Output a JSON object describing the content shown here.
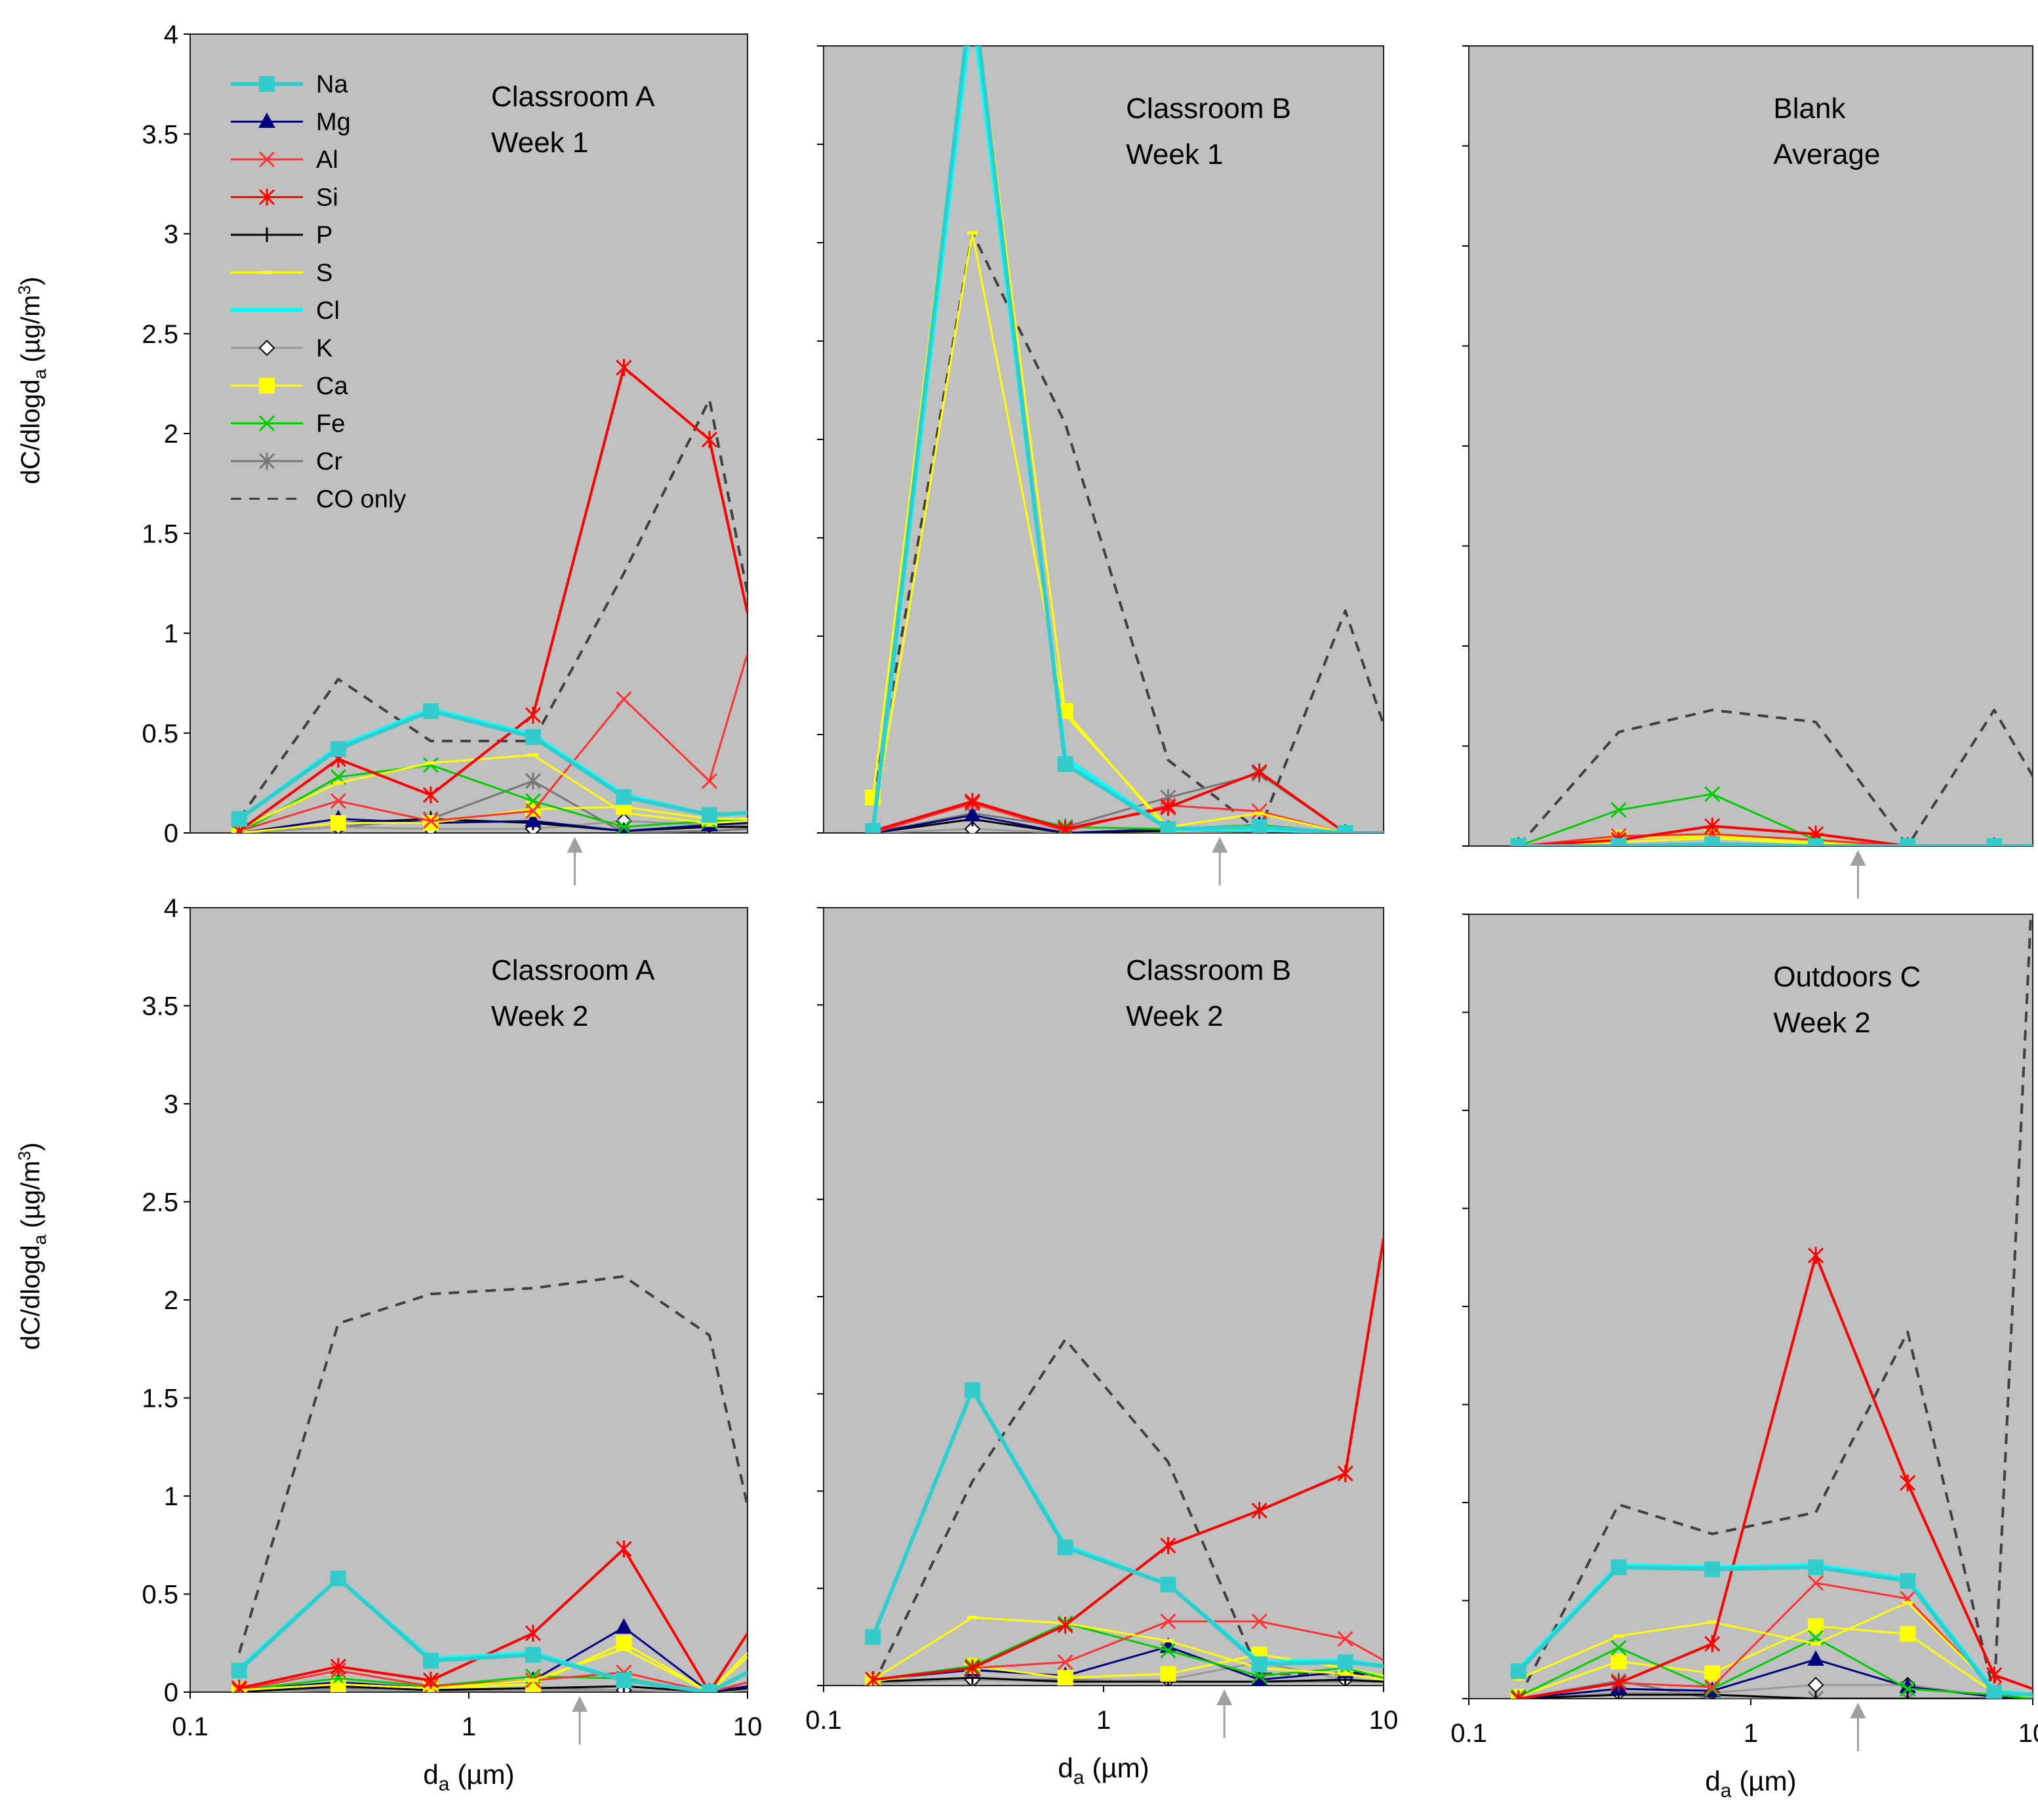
{
  "chart_data": {
    "type": "line",
    "ylabel": "dC/dlogd_a (µg/m³)",
    "ylabel_main": "dC/dlogd",
    "ylabel_sub": "a",
    "ylabel_unit": "(µg/m",
    "ylabel_sup": "3",
    "ylabel_close": ")",
    "xlabel_main": "d",
    "xlabel_sub": "a",
    "xlabel_unit": "(µm)",
    "x_scale": "log",
    "xlim": [
      0.1,
      10
    ],
    "ylim": [
      0,
      4
    ],
    "x_tick_labels": [
      "0.1",
      "1",
      "10"
    ],
    "y_tick_labels": [
      "0",
      "0.5",
      "1",
      "1.5",
      "2",
      "2.5",
      "3",
      "3.5",
      "4"
    ],
    "x": [
      0.15,
      0.34,
      0.73,
      1.7,
      3.6,
      7.3,
      10
    ],
    "legend_position": "top-left",
    "series_styles": [
      {
        "name": "Na",
        "color": "#33CCCC",
        "marker": "square"
      },
      {
        "name": "Mg",
        "color": "#00007F",
        "marker": "triangle"
      },
      {
        "name": "Al",
        "color": "#FF3333",
        "marker": "x"
      },
      {
        "name": "Si",
        "color": "#FF0000",
        "marker": "star"
      },
      {
        "name": "P",
        "color": "#000000",
        "marker": "plus"
      },
      {
        "name": "S",
        "color": "#FFFF00",
        "marker": "dash"
      },
      {
        "name": "Cl",
        "color": "#00FFFF",
        "marker": "none"
      },
      {
        "name": "K",
        "color": "#999999",
        "marker": "diamond"
      },
      {
        "name": "Ca",
        "color": "#FFFF00",
        "marker": "square"
      },
      {
        "name": "Fe",
        "color": "#00CC00",
        "marker": "x"
      },
      {
        "name": "Cr",
        "color": "#777777",
        "marker": "star"
      },
      {
        "name": "CO only",
        "color": "#444444",
        "marker": "none",
        "dashed": true
      }
    ],
    "panels": [
      {
        "title_line1": "Classroom A",
        "title_line2": "Week 1",
        "arrow_x": 2.4,
        "series": [
          {
            "name": "Na",
            "values": [
              0.07,
              0.42,
              0.61,
              0.48,
              0.18,
              0.09,
              0.1
            ]
          },
          {
            "name": "Mg",
            "values": [
              0.0,
              0.07,
              0.05,
              0.06,
              0.01,
              0.04,
              0.05
            ]
          },
          {
            "name": "Al",
            "values": [
              0.01,
              0.16,
              0.06,
              0.11,
              0.67,
              0.26,
              0.9
            ]
          },
          {
            "name": "Si",
            "values": [
              0.01,
              0.37,
              0.19,
              0.59,
              2.33,
              1.97,
              1.1
            ]
          },
          {
            "name": "P",
            "values": [
              0.0,
              0.05,
              0.07,
              0.05,
              0.01,
              0.03,
              0.03
            ]
          },
          {
            "name": "S",
            "values": [
              0.02,
              0.25,
              0.35,
              0.39,
              0.1,
              0.05,
              0.06
            ]
          },
          {
            "name": "Cl",
            "values": [
              0.07,
              0.43,
              0.62,
              0.49,
              0.19,
              0.09,
              0.1
            ]
          },
          {
            "name": "K",
            "values": [
              0.0,
              0.03,
              0.02,
              0.02,
              0.06,
              0.04,
              0.04
            ]
          },
          {
            "name": "Ca",
            "values": [
              0.0,
              0.05,
              0.05,
              0.12,
              0.13,
              0.07,
              0.07
            ]
          },
          {
            "name": "Fe",
            "values": [
              0.0,
              0.28,
              0.34,
              0.16,
              0.03,
              0.06,
              0.06
            ]
          },
          {
            "name": "Cr",
            "values": [
              0.0,
              0.03,
              0.07,
              0.26,
              0.0,
              0.01,
              0.02
            ]
          },
          {
            "name": "CO only",
            "values": [
              0.07,
              0.77,
              0.46,
              0.46,
              1.3,
              2.17,
              1.2
            ]
          }
        ]
      },
      {
        "title_line1": "Classroom B",
        "title_line2": "Week 1",
        "arrow_x": 2.6,
        "series": [
          {
            "name": "Na",
            "values": [
              0.01,
              4.3,
              0.35,
              0.02,
              0.03,
              0.0,
              0.0
            ]
          },
          {
            "name": "Mg",
            "values": [
              0.0,
              0.09,
              0.0,
              0.02,
              0.04,
              0.0,
              0.0
            ]
          },
          {
            "name": "Al",
            "values": [
              0.0,
              0.15,
              0.01,
              0.14,
              0.11,
              0.0,
              0.0
            ]
          },
          {
            "name": "Si",
            "values": [
              0.01,
              0.16,
              0.02,
              0.13,
              0.31,
              0.0,
              0.0
            ]
          },
          {
            "name": "P",
            "values": [
              0.0,
              0.07,
              0.0,
              0.01,
              0.02,
              0.0,
              0.0
            ]
          },
          {
            "name": "S",
            "values": [
              0.04,
              3.05,
              0.6,
              0.03,
              0.1,
              0.0,
              0.0
            ]
          },
          {
            "name": "Cl",
            "values": [
              0.0,
              4.2,
              0.38,
              0.02,
              0.02,
              0.0,
              0.0
            ]
          },
          {
            "name": "K",
            "values": [
              0.0,
              0.02,
              0.0,
              0.0,
              0.01,
              0.0,
              0.0
            ]
          },
          {
            "name": "Ca",
            "values": [
              0.18,
              4.3,
              0.62,
              0.01,
              0.02,
              0.0,
              0.0
            ]
          },
          {
            "name": "Fe",
            "values": [
              0.01,
              0.15,
              0.03,
              0.02,
              0.04,
              0.0,
              0.0
            ]
          },
          {
            "name": "Cr",
            "values": [
              0.0,
              0.1,
              0.03,
              0.18,
              0.3,
              0.0,
              0.0
            ]
          },
          {
            "name": "CO only",
            "values": [
              0.17,
              3.05,
              2.08,
              0.37,
              0.01,
              1.13,
              0.55
            ]
          }
        ]
      },
      {
        "title_line1": "Blank",
        "title_line2": "Average",
        "arrow_x": 2.4,
        "series": [
          {
            "name": "Na",
            "values": [
              0.0,
              0.0,
              0.01,
              0.0,
              0.0,
              0.0,
              0.0
            ]
          },
          {
            "name": "Mg",
            "values": [
              0.0,
              0.0,
              0.0,
              0.0,
              0.0,
              0.0,
              0.0
            ]
          },
          {
            "name": "Al",
            "values": [
              0.0,
              0.05,
              0.06,
              0.03,
              0.0,
              0.0,
              0.0
            ]
          },
          {
            "name": "Si",
            "values": [
              0.0,
              0.03,
              0.1,
              0.06,
              0.0,
              0.0,
              0.0
            ]
          },
          {
            "name": "P",
            "values": [
              0.0,
              0.0,
              0.0,
              0.0,
              0.0,
              0.0,
              0.0
            ]
          },
          {
            "name": "S",
            "values": [
              0.0,
              0.02,
              0.04,
              0.01,
              0.0,
              0.0,
              0.0
            ]
          },
          {
            "name": "Cl",
            "values": [
              0.0,
              0.0,
              0.01,
              0.0,
              0.0,
              0.0,
              0.0
            ]
          },
          {
            "name": "K",
            "values": [
              0.0,
              0.0,
              0.0,
              0.0,
              0.0,
              0.0,
              0.0
            ]
          },
          {
            "name": "Ca",
            "values": [
              0.0,
              0.04,
              0.05,
              0.02,
              0.0,
              0.0,
              0.0
            ]
          },
          {
            "name": "Fe",
            "values": [
              0.0,
              0.18,
              0.26,
              0.03,
              0.0,
              0.0,
              0.0
            ]
          },
          {
            "name": "Cr",
            "values": [
              0.0,
              0.0,
              0.0,
              0.0,
              0.0,
              0.0,
              0.0
            ]
          },
          {
            "name": "CO only",
            "values": [
              0.0,
              0.57,
              0.68,
              0.62,
              0.0,
              0.68,
              0.35
            ]
          }
        ]
      },
      {
        "title_line1": "Classroom A",
        "title_line2": "Week 2",
        "arrow_x": 2.5,
        "series": [
          {
            "name": "Na",
            "values": [
              0.11,
              0.58,
              0.16,
              0.19,
              0.06,
              0.0,
              0.1
            ]
          },
          {
            "name": "Mg",
            "values": [
              0.01,
              0.05,
              0.02,
              0.06,
              0.33,
              0.0,
              0.03
            ]
          },
          {
            "name": "Al",
            "values": [
              0.01,
              0.11,
              0.03,
              0.06,
              0.1,
              0.0,
              0.05
            ]
          },
          {
            "name": "Si",
            "values": [
              0.02,
              0.13,
              0.06,
              0.3,
              0.73,
              0.0,
              0.3
            ]
          },
          {
            "name": "P",
            "values": [
              0.0,
              0.03,
              0.01,
              0.02,
              0.03,
              0.0,
              0.02
            ]
          },
          {
            "name": "S",
            "values": [
              0.01,
              0.04,
              0.02,
              0.06,
              0.22,
              0.0,
              0.18
            ]
          },
          {
            "name": "Cl",
            "values": [
              0.12,
              0.58,
              0.17,
              0.2,
              0.06,
              0.0,
              0.1
            ]
          },
          {
            "name": "K",
            "values": [
              0.0,
              0.01,
              0.01,
              0.01,
              0.01,
              0.0,
              0.01
            ]
          },
          {
            "name": "Ca",
            "values": [
              0.01,
              0.04,
              0.02,
              0.04,
              0.25,
              0.0,
              0.2
            ]
          },
          {
            "name": "Fe",
            "values": [
              0.01,
              0.07,
              0.03,
              0.08,
              0.07,
              0.0,
              0.05
            ]
          },
          {
            "name": "Cr",
            "values": [
              0.0,
              0.02,
              0.01,
              0.02,
              0.01,
              0.0,
              0.01
            ]
          },
          {
            "name": "CO only",
            "values": [
              0.2,
              1.88,
              2.03,
              2.06,
              2.12,
              1.82,
              0.95
            ]
          }
        ]
      },
      {
        "title_line1": "Classroom B",
        "title_line2": "Week 2",
        "arrow_x": 2.7,
        "series": [
          {
            "name": "Na",
            "values": [
              0.25,
              1.52,
              0.71,
              0.52,
              0.11,
              0.12,
              0.1
            ]
          },
          {
            "name": "Mg",
            "values": [
              0.03,
              0.08,
              0.05,
              0.2,
              0.03,
              0.07,
              0.05
            ]
          },
          {
            "name": "Al",
            "values": [
              0.03,
              0.09,
              0.12,
              0.33,
              0.33,
              0.24,
              0.13
            ]
          },
          {
            "name": "Si",
            "values": [
              0.03,
              0.09,
              0.31,
              0.72,
              0.9,
              1.09,
              2.3
            ]
          },
          {
            "name": "P",
            "values": [
              0.02,
              0.04,
              0.02,
              0.02,
              0.02,
              0.03,
              0.02
            ]
          },
          {
            "name": "S",
            "values": [
              0.03,
              0.35,
              0.32,
              0.23,
              0.09,
              0.06,
              0.03
            ]
          },
          {
            "name": "Cl",
            "values": [
              0.25,
              1.52,
              0.72,
              0.52,
              0.12,
              0.13,
              0.1
            ]
          },
          {
            "name": "K",
            "values": [
              0.01,
              0.03,
              0.02,
              0.03,
              0.12,
              0.03,
              0.02
            ]
          },
          {
            "name": "Ca",
            "values": [
              0.02,
              0.1,
              0.04,
              0.06,
              0.16,
              0.09,
              0.05
            ]
          },
          {
            "name": "Fe",
            "values": [
              0.03,
              0.1,
              0.32,
              0.18,
              0.05,
              0.09,
              0.04
            ]
          },
          {
            "name": "Cr",
            "values": [
              0.02,
              0.03,
              0.03,
              0.02,
              0.02,
              0.02,
              0.02
            ]
          },
          {
            "name": "CO only",
            "values": [
              0.0,
              1.05,
              1.78,
              1.15,
              0.06,
              0.06,
              0.05
            ]
          }
        ]
      },
      {
        "title_line1": "Outdoors C",
        "title_line2": "Week 2",
        "arrow_x": 2.4,
        "series": [
          {
            "name": "Na",
            "values": [
              0.14,
              0.67,
              0.66,
              0.67,
              0.6,
              0.03,
              0.02
            ]
          },
          {
            "name": "Mg",
            "values": [
              0.0,
              0.05,
              0.04,
              0.2,
              0.06,
              0.01,
              0.0
            ]
          },
          {
            "name": "Al",
            "values": [
              0.0,
              0.08,
              0.06,
              0.59,
              0.51,
              0.05,
              0.02
            ]
          },
          {
            "name": "Si",
            "values": [
              0.0,
              0.08,
              0.28,
              2.26,
              1.1,
              0.12,
              0.05
            ]
          },
          {
            "name": "P",
            "values": [
              0.0,
              0.02,
              0.02,
              0.0,
              0.0,
              0.0,
              0.0
            ]
          },
          {
            "name": "S",
            "values": [
              0.1,
              0.32,
              0.39,
              0.28,
              0.49,
              0.05,
              0.02
            ]
          },
          {
            "name": "Cl",
            "values": [
              0.15,
              0.68,
              0.67,
              0.68,
              0.61,
              0.04,
              0.02
            ]
          },
          {
            "name": "K",
            "values": [
              0.0,
              0.03,
              0.03,
              0.07,
              0.07,
              0.01,
              0.0
            ]
          },
          {
            "name": "Ca",
            "values": [
              0.01,
              0.19,
              0.13,
              0.37,
              0.33,
              0.03,
              0.01
            ]
          },
          {
            "name": "Fe",
            "values": [
              0.01,
              0.26,
              0.05,
              0.31,
              0.05,
              0.02,
              0.0
            ]
          },
          {
            "name": "Cr",
            "values": [
              0.0,
              0.09,
              0.0,
              0.0,
              0.0,
              0.0,
              0.0
            ]
          },
          {
            "name": "CO only",
            "values": [
              0.0,
              0.99,
              0.84,
              0.95,
              1.87,
              0.02,
              4.2
            ]
          }
        ]
      }
    ]
  }
}
